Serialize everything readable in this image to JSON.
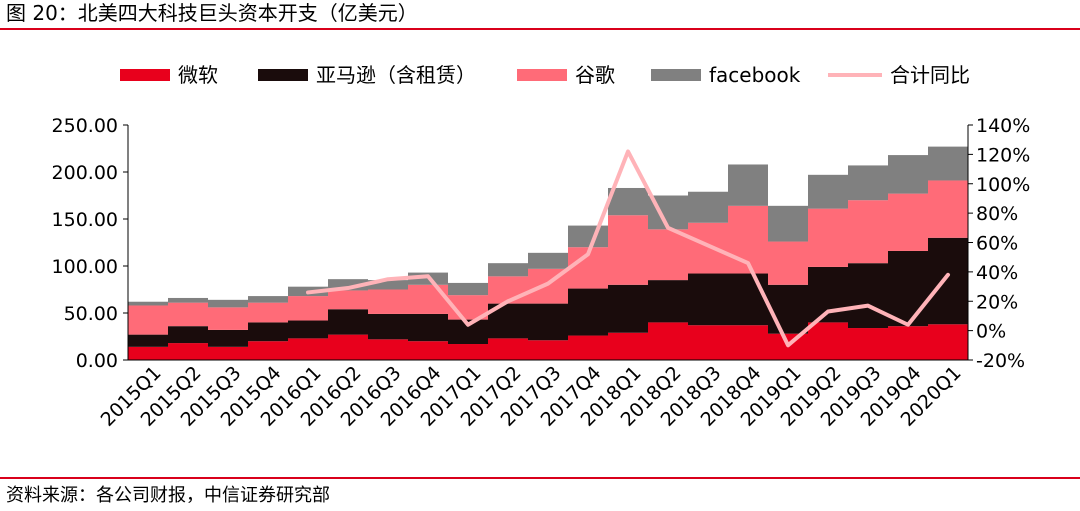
{
  "figure": {
    "title": "图 20：北美四大科技巨头资本开支（亿美元）",
    "source": "资料来源：各公司财报，中信证券研究部"
  },
  "colors": {
    "rule": "#d9001b",
    "microsoft": "#e8001c",
    "amazon": "#1a0c0c",
    "google": "#ff6b78",
    "facebook": "#808080",
    "yoy": "#ffb3b8"
  },
  "chart_data": {
    "type": "bar",
    "stacked": true,
    "categories": [
      "2015Q1",
      "2015Q2",
      "2015Q3",
      "2015Q4",
      "2016Q1",
      "2016Q2",
      "2016Q3",
      "2016Q4",
      "2017Q1",
      "2017Q2",
      "2017Q3",
      "2017Q4",
      "2018Q1",
      "2018Q2",
      "2018Q3",
      "2018Q4",
      "2019Q1",
      "2019Q2",
      "2019Q3",
      "2019Q4",
      "2020Q1"
    ],
    "series": [
      {
        "name": "微软",
        "key": "microsoft",
        "axis": "left",
        "values": [
          14,
          18,
          14,
          20,
          23,
          27,
          22,
          20,
          17,
          23,
          21,
          26,
          29,
          40,
          37,
          37,
          28,
          40,
          34,
          36,
          38
        ]
      },
      {
        "name": "亚马逊（含租赁）",
        "key": "amazon",
        "axis": "left",
        "values": [
          13,
          18,
          18,
          20,
          19,
          27,
          27,
          29,
          26,
          37,
          39,
          50,
          51,
          45,
          55,
          55,
          52,
          59,
          69,
          80,
          92
        ]
      },
      {
        "name": "谷歌",
        "key": "google",
        "axis": "left",
        "values": [
          31,
          25,
          24,
          21,
          26,
          20,
          26,
          31,
          26,
          29,
          37,
          44,
          74,
          54,
          54,
          72,
          46,
          62,
          67,
          61,
          61
        ]
      },
      {
        "name": "facebook",
        "key": "facebook",
        "axis": "left",
        "values": [
          4,
          5,
          8,
          7,
          10,
          12,
          10,
          13,
          13,
          14,
          17,
          23,
          29,
          36,
          33,
          44,
          38,
          36,
          37,
          41,
          36
        ]
      }
    ],
    "line": {
      "name": "合计同比",
      "key": "yoy",
      "axis": "right",
      "start_index": 4,
      "values": [
        26,
        29,
        35,
        37,
        4,
        20,
        32,
        52,
        122,
        70,
        58,
        46,
        -10,
        13,
        17,
        4,
        38
      ]
    },
    "y_left": {
      "min": 0,
      "max": 250,
      "ticks": [
        "0.00",
        "50.00",
        "100.00",
        "150.00",
        "200.00",
        "250.00"
      ]
    },
    "y_right": {
      "min": -20,
      "max": 140,
      "ticks": [
        "-20%",
        "0%",
        "20%",
        "40%",
        "60%",
        "80%",
        "100%",
        "120%",
        "140%"
      ]
    },
    "legend_position": "top",
    "grid": false
  }
}
